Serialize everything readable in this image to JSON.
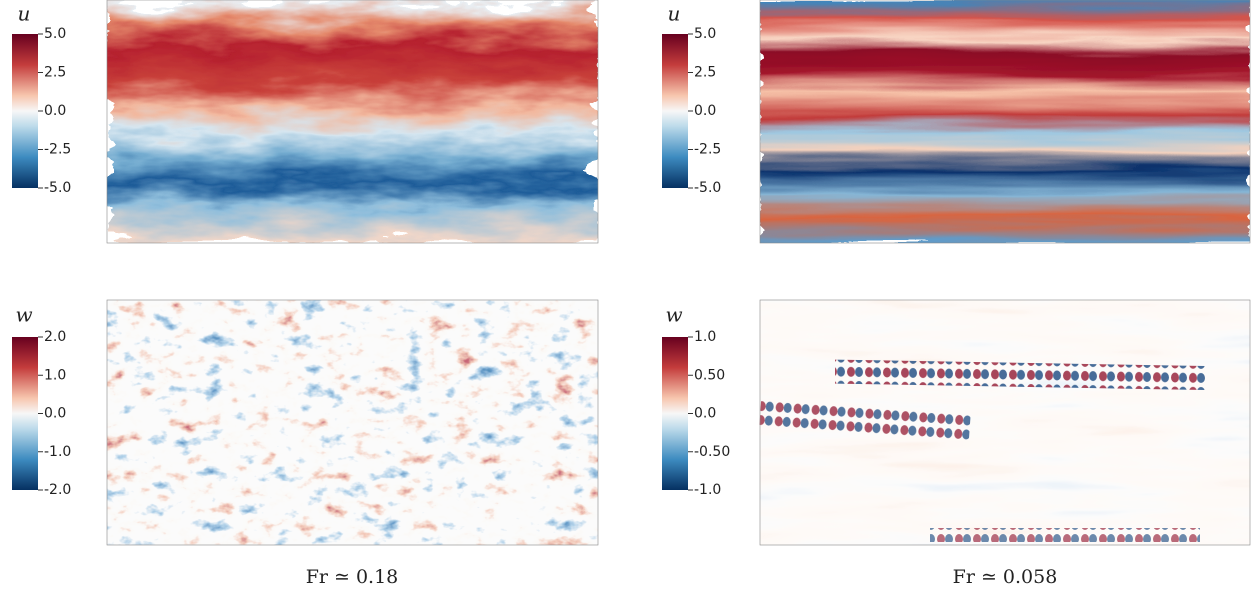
{
  "panels": [
    {
      "variable": "u",
      "ticks": [
        "5.0",
        "2.5",
        "0.0",
        "-2.5",
        "-5.0"
      ]
    },
    {
      "variable": "u",
      "ticks": [
        "5.0",
        "2.5",
        "0.0",
        "-2.5",
        "-5.0"
      ]
    },
    {
      "variable": "w",
      "ticks": [
        "2.0",
        "1.0",
        "0.0",
        "-1.0",
        "-2.0"
      ]
    },
    {
      "variable": "w",
      "ticks": [
        "1.0",
        "0.50",
        "0.0",
        "-0.50",
        "-1.0"
      ]
    }
  ],
  "captions": [
    "Fr ≃ 0.18",
    "Fr ≃ 0.058"
  ]
}
